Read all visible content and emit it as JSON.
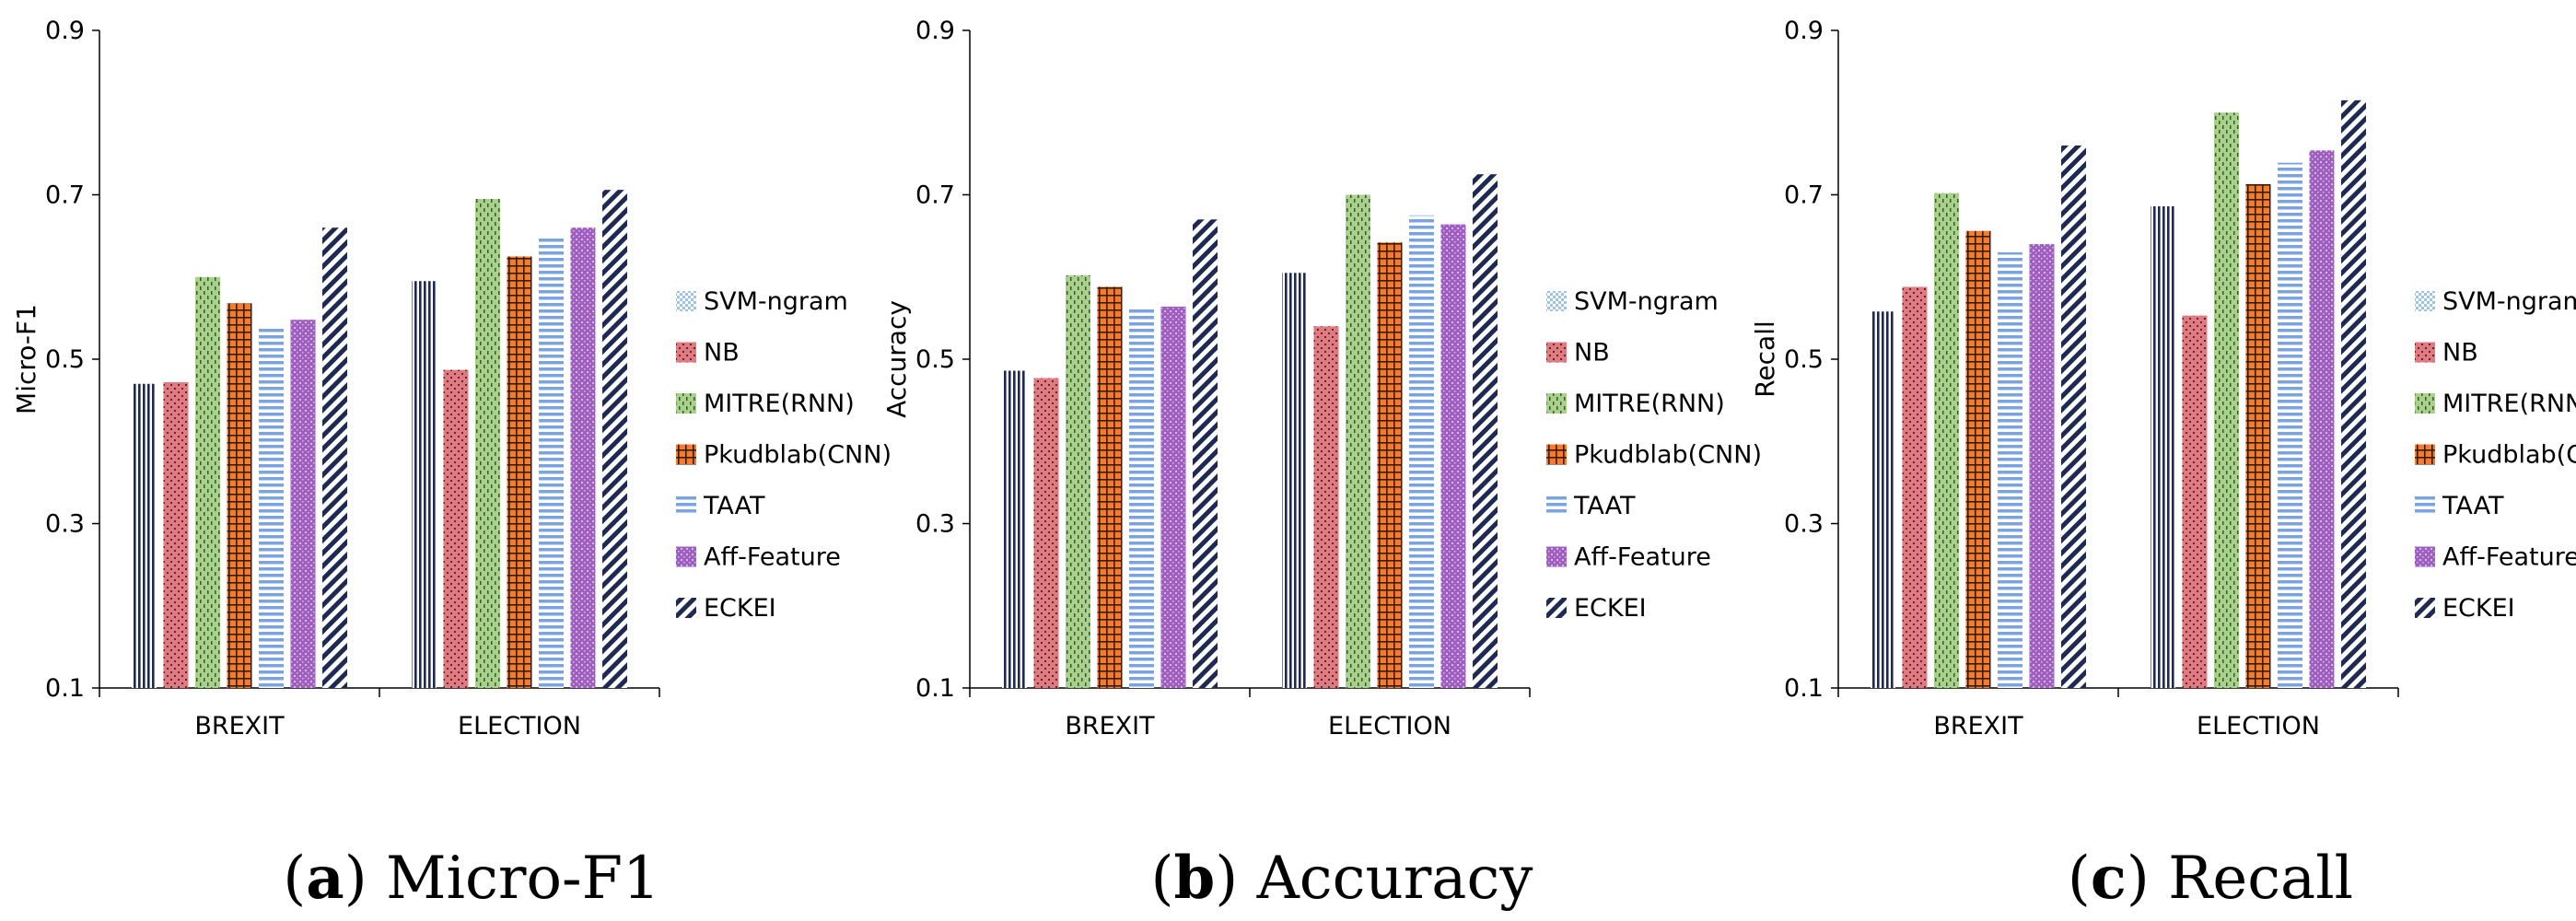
{
  "legend": [
    {
      "name": "SVM-ngram",
      "color": "#9dc3e6",
      "pattern": "checker"
    },
    {
      "name": "NB",
      "color": "#e07a80",
      "pattern": "dots"
    },
    {
      "name": "MITRE(RNN)",
      "color": "#a9d18e",
      "pattern": "dashes"
    },
    {
      "name": "Pkudblab(CNN)",
      "color": "#f47c2c",
      "pattern": "grid"
    },
    {
      "name": "TAAT",
      "color": "#7aa3df",
      "pattern": "hlines"
    },
    {
      "name": "Aff-Feature",
      "color": "#9e5fbf",
      "pattern": "dots2"
    },
    {
      "name": "ECKEI",
      "color": "#1f2a52",
      "pattern": "diag"
    }
  ],
  "chart_data": [
    {
      "type": "bar",
      "caption_letter": "(a)",
      "caption_text": "Micro-F1",
      "ylabel": "Micro-F1",
      "ylim": [
        0.1,
        0.9
      ],
      "yticks": [
        "0.1",
        "0.3",
        "0.5",
        "0.7",
        "0.9"
      ],
      "categories": [
        "BREXIT",
        "ELECTION"
      ],
      "series": [
        {
          "name": "SVM-ngram",
          "values": [
            0.47,
            0.595
          ]
        },
        {
          "name": "NB",
          "values": [
            0.472,
            0.487
          ]
        },
        {
          "name": "MITRE(RNN)",
          "values": [
            0.6,
            0.695
          ]
        },
        {
          "name": "Pkudblab(CNN)",
          "values": [
            0.568,
            0.625
          ]
        },
        {
          "name": "TAAT",
          "values": [
            0.537,
            0.647
          ]
        },
        {
          "name": "Aff-Feature",
          "values": [
            0.548,
            0.66
          ]
        },
        {
          "name": "ECKEI",
          "values": [
            0.66,
            0.706
          ]
        }
      ]
    },
    {
      "type": "bar",
      "caption_letter": "(b)",
      "caption_text": "Accuracy",
      "ylabel": "Accuracy",
      "ylim": [
        0.1,
        0.9
      ],
      "yticks": [
        "0.1",
        "0.3",
        "0.5",
        "0.7",
        "0.9"
      ],
      "categories": [
        "BREXIT",
        "ELECTION"
      ],
      "series": [
        {
          "name": "SVM-ngram",
          "values": [
            0.486,
            0.605
          ]
        },
        {
          "name": "NB",
          "values": [
            0.477,
            0.54
          ]
        },
        {
          "name": "MITRE(RNN)",
          "values": [
            0.602,
            0.7
          ]
        },
        {
          "name": "Pkudblab(CNN)",
          "values": [
            0.588,
            0.642
          ]
        },
        {
          "name": "TAAT",
          "values": [
            0.562,
            0.675
          ]
        },
        {
          "name": "Aff-Feature",
          "values": [
            0.564,
            0.664
          ]
        },
        {
          "name": "ECKEI",
          "values": [
            0.67,
            0.725
          ]
        }
      ]
    },
    {
      "type": "bar",
      "caption_letter": "(c)",
      "caption_text": "Recall",
      "ylabel": "Recall",
      "ylim": [
        0.1,
        0.9
      ],
      "yticks": [
        "0.1",
        "0.3",
        "0.5",
        "0.7",
        "0.9"
      ],
      "categories": [
        "BREXIT",
        "ELECTION"
      ],
      "series": [
        {
          "name": "SVM-ngram",
          "values": [
            0.558,
            0.686
          ]
        },
        {
          "name": "NB",
          "values": [
            0.588,
            0.553
          ]
        },
        {
          "name": "MITRE(RNN)",
          "values": [
            0.702,
            0.8
          ]
        },
        {
          "name": "Pkudblab(CNN)",
          "values": [
            0.656,
            0.713
          ]
        },
        {
          "name": "TAAT",
          "values": [
            0.63,
            0.739
          ]
        },
        {
          "name": "Aff-Feature",
          "values": [
            0.64,
            0.754
          ]
        },
        {
          "name": "ECKEI",
          "values": [
            0.76,
            0.815
          ]
        }
      ]
    }
  ]
}
